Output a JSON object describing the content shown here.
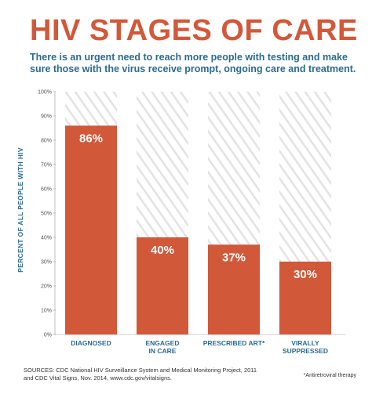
{
  "header": {
    "title": "HIV STAGES OF CARE",
    "subtitle": "There is an urgent need to reach more people with testing and make sure those with the virus receive prompt, ongoing care and treatment."
  },
  "chart_data": {
    "type": "bar",
    "categories": [
      "DIAGNOSED",
      "ENGAGED\nIN CARE",
      "PRESCRIBED ART*",
      "VIRALLY\nSUPPRESSED"
    ],
    "values": [
      86,
      40,
      37,
      30
    ],
    "data_labels": [
      "86%",
      "40%",
      "37%",
      "30%"
    ],
    "ylabel": "PERCENT OF ALL PEOPLE WITH HIV",
    "ylim": [
      0,
      100
    ],
    "yticks": [
      "0%",
      "10%",
      "20%",
      "30%",
      "40%",
      "50%",
      "60%",
      "70%",
      "80%",
      "90%",
      "100%"
    ],
    "grid": false,
    "bar_color": "#d2583a",
    "hatch_color": "#e3e3e3"
  },
  "footnote": "*Antiretroviral therapy",
  "sources": "SOURCES: CDC National HIV Surveillance System and Medical Monitoring Project, 2011 and CDC Vital Signs, Nov. 2014, www.cdc.gov/vitalsigns.",
  "colors": {
    "title": "#d2583a",
    "subtitle": "#2d6a8f"
  }
}
